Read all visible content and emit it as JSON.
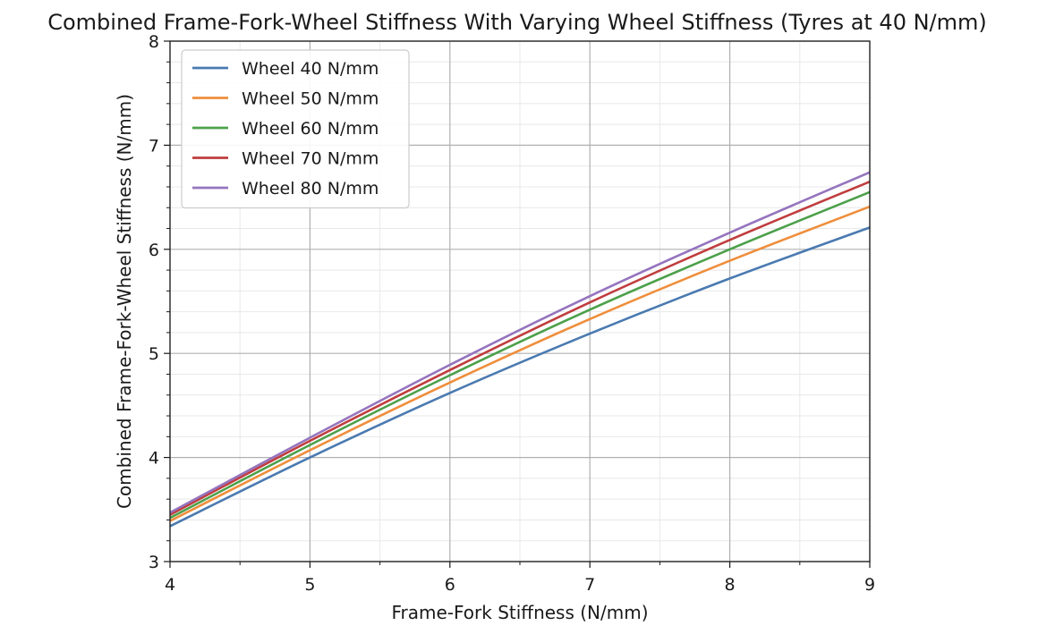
{
  "chart_data": {
    "type": "line",
    "title": "Combined Frame-Fork-Wheel Stiffness With Varying Wheel Stiffness (Tyres at 40 N/mm)",
    "xlabel": "Frame-Fork Stiffness (N/mm)",
    "ylabel": "Combined Frame-Fork-Wheel Stiffness (N/mm)",
    "xlim": [
      4,
      9
    ],
    "ylim": [
      3,
      8
    ],
    "xticks": [
      "4",
      "5",
      "6",
      "7",
      "8",
      "9"
    ],
    "yticks": [
      "3",
      "4",
      "5",
      "6",
      "7",
      "8"
    ],
    "grid": true,
    "minor_grid": true,
    "legend_position": "top-left",
    "x": [
      4,
      5,
      6,
      7,
      8,
      9
    ],
    "series": [
      {
        "name": "Wheel 40 N/mm",
        "color": "#4a7ab0",
        "values": [
          3.34,
          4.0,
          4.62,
          5.19,
          5.72,
          6.21
        ]
      },
      {
        "name": "Wheel 50 N/mm",
        "color": "#ef8e3c",
        "values": [
          3.39,
          4.07,
          4.72,
          5.33,
          5.89,
          6.41
        ]
      },
      {
        "name": "Wheel 60 N/mm",
        "color": "#4ca04a",
        "values": [
          3.42,
          4.12,
          4.79,
          5.42,
          6.0,
          6.55
        ]
      },
      {
        "name": "Wheel 70 N/mm",
        "color": "#c03d3e",
        "values": [
          3.45,
          4.16,
          4.84,
          5.49,
          6.09,
          6.65
        ]
      },
      {
        "name": "Wheel 80 N/mm",
        "color": "#9574be",
        "values": [
          3.47,
          4.19,
          4.89,
          5.55,
          6.16,
          6.74
        ]
      }
    ]
  }
}
